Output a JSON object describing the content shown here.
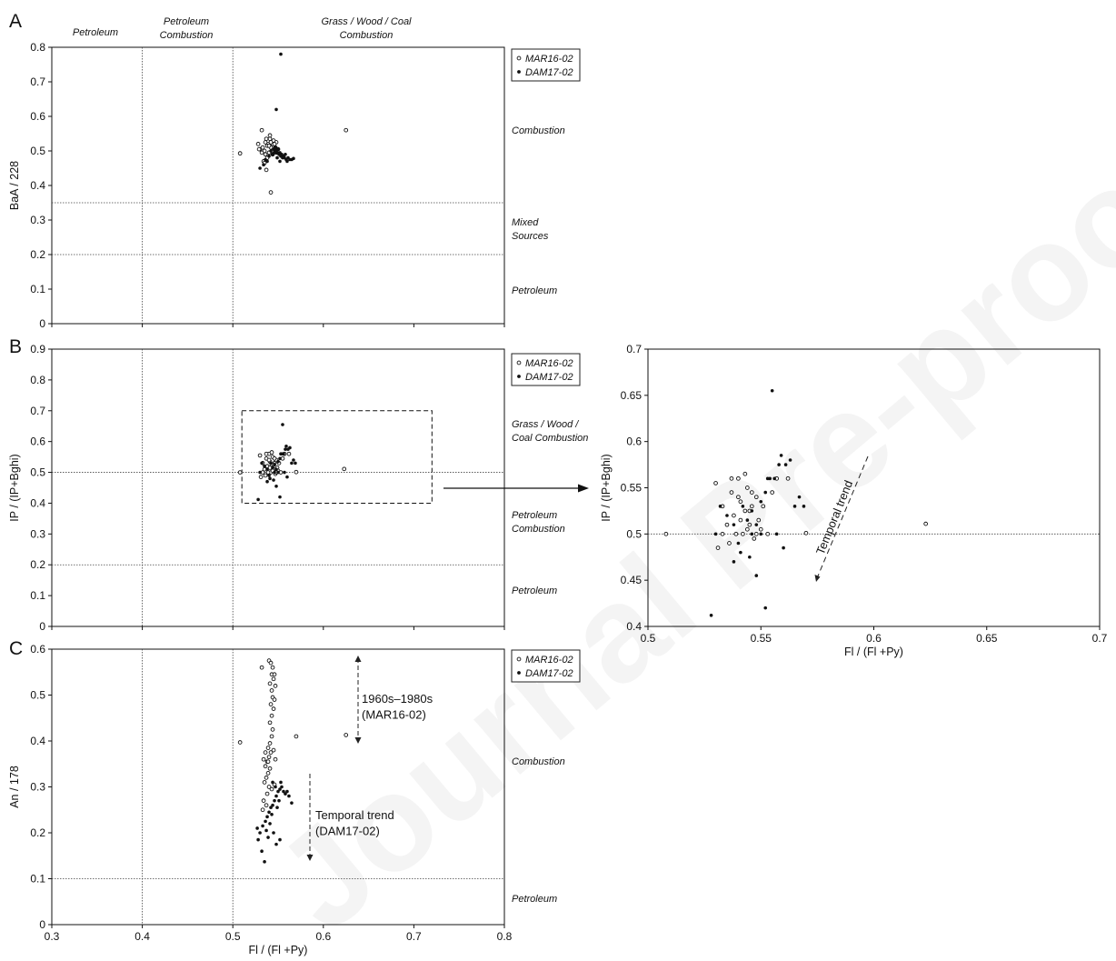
{
  "figure": {
    "watermark": "Journal Pre-proof",
    "legend": [
      {
        "label": "MAR16-02",
        "marker": "open-circle"
      },
      {
        "label": "DAM17-02",
        "marker": "filled-dot"
      }
    ],
    "region_labels_top": [
      "Petroleum",
      "Petroleum\nCombustion",
      "Grass / Wood / Coal\nCombustion"
    ],
    "panels": {
      "A": {
        "letter": "A",
        "ylabel": "BaA / 228",
        "region_labels_right": [
          "Combustion",
          "Mixed\nSources",
          "Petroleum"
        ]
      },
      "B": {
        "letter": "B",
        "ylabel": "IP / (IP+Bghi)",
        "region_labels_right": [
          "Grass / Wood /\nCoal Combustion",
          "Petroleum\nCombustion",
          "Petroleum"
        ]
      },
      "C": {
        "letter": "C",
        "ylabel": "An / 178",
        "xlabel": "Fl / (Fl +Py)",
        "region_labels_right": [
          "Combustion",
          "Petroleum"
        ],
        "annotations": [
          "1960s–1980s\n(MAR16-02)",
          "Temporal trend\n(DAM17-02)"
        ]
      },
      "zoom": {
        "ylabel": "IP / (IP+Bghi)",
        "xlabel": "Fl / (Fl +Py)",
        "annotation": "Temporal trend"
      }
    }
  },
  "chart_data": [
    {
      "type": "scatter",
      "panel": "A",
      "xlim": [
        0.3,
        0.8
      ],
      "ylim": [
        0,
        0.8
      ],
      "xticks": [
        "0.3",
        "0.4",
        "0.5",
        "0.6",
        "0.7",
        "0.8"
      ],
      "yticks": [
        "0",
        "0.1",
        "0.2",
        "0.3",
        "0.4",
        "0.5",
        "0.6",
        "0.7",
        "0.8"
      ],
      "reference_lines": {
        "x": [
          0.4,
          0.5
        ],
        "y": [
          0.2,
          0.35
        ]
      },
      "series": [
        {
          "name": "MAR16-02",
          "marker": "open-circle",
          "points": [
            [
              0.508,
              0.493
            ],
            [
              0.532,
              0.56
            ],
            [
              0.625,
              0.56
            ],
            [
              0.542,
              0.38
            ],
            [
              0.537,
              0.445
            ],
            [
              0.528,
              0.52
            ],
            [
              0.53,
              0.505
            ],
            [
              0.533,
              0.51
            ],
            [
              0.535,
              0.5
            ],
            [
              0.536,
              0.525
            ],
            [
              0.538,
              0.515
            ],
            [
              0.539,
              0.53
            ],
            [
              0.54,
              0.495
            ],
            [
              0.541,
              0.535
            ],
            [
              0.542,
              0.51
            ],
            [
              0.543,
              0.5
            ],
            [
              0.544,
              0.52
            ],
            [
              0.545,
              0.53
            ],
            [
              0.546,
              0.505
            ],
            [
              0.547,
              0.51
            ],
            [
              0.548,
              0.525
            ],
            [
              0.536,
              0.49
            ],
            [
              0.538,
              0.48
            ],
            [
              0.534,
              0.47
            ],
            [
              0.54,
              0.515
            ],
            [
              0.544,
              0.49
            ],
            [
              0.542,
              0.525
            ],
            [
              0.532,
              0.495
            ],
            [
              0.529,
              0.505
            ],
            [
              0.537,
              0.535
            ],
            [
              0.546,
              0.52
            ],
            [
              0.548,
              0.495
            ],
            [
              0.55,
              0.505
            ],
            [
              0.535,
              0.465
            ],
            [
              0.541,
              0.545
            ]
          ]
        },
        {
          "name": "DAM17-02",
          "marker": "filled-dot",
          "points": [
            [
              0.553,
              0.78
            ],
            [
              0.548,
              0.62
            ],
            [
              0.53,
              0.45
            ],
            [
              0.536,
              0.475
            ],
            [
              0.54,
              0.485
            ],
            [
              0.544,
              0.49
            ],
            [
              0.547,
              0.5
            ],
            [
              0.549,
              0.495
            ],
            [
              0.551,
              0.49
            ],
            [
              0.553,
              0.485
            ],
            [
              0.555,
              0.48
            ],
            [
              0.557,
              0.48
            ],
            [
              0.559,
              0.475
            ],
            [
              0.561,
              0.48
            ],
            [
              0.563,
              0.475
            ],
            [
              0.565,
              0.475
            ],
            [
              0.545,
              0.505
            ],
            [
              0.547,
              0.51
            ],
            [
              0.55,
              0.505
            ],
            [
              0.552,
              0.495
            ],
            [
              0.554,
              0.49
            ],
            [
              0.556,
              0.485
            ],
            [
              0.558,
              0.49
            ],
            [
              0.542,
              0.5
            ],
            [
              0.546,
              0.495
            ],
            [
              0.538,
              0.47
            ],
            [
              0.534,
              0.46
            ],
            [
              0.549,
              0.48
            ],
            [
              0.552,
              0.47
            ],
            [
              0.56,
              0.47
            ],
            [
              0.567,
              0.478
            ]
          ]
        }
      ]
    },
    {
      "type": "scatter",
      "panel": "B",
      "xlim": [
        0.3,
        0.8
      ],
      "ylim": [
        0,
        0.9
      ],
      "xticks": [
        "0.3",
        "0.4",
        "0.5",
        "0.6",
        "0.7",
        "0.8"
      ],
      "yticks": [
        "0",
        "0.1",
        "0.2",
        "0.3",
        "0.4",
        "0.5",
        "0.6",
        "0.7",
        "0.8",
        "0.9"
      ],
      "reference_lines": {
        "x": [
          0.4,
          0.5
        ],
        "y": [
          0.2,
          0.5
        ]
      },
      "zoom_box": {
        "x": [
          0.51,
          0.72
        ],
        "y": [
          0.4,
          0.7
        ]
      },
      "series": [
        {
          "name": "MAR16-02",
          "marker": "open-circle",
          "points": [
            [
              0.508,
              0.5
            ],
            [
              0.623,
              0.511
            ],
            [
              0.53,
              0.555
            ],
            [
              0.533,
              0.53
            ],
            [
              0.535,
              0.51
            ],
            [
              0.537,
              0.545
            ],
            [
              0.538,
              0.52
            ],
            [
              0.54,
              0.56
            ],
            [
              0.541,
              0.535
            ],
            [
              0.542,
              0.5
            ],
            [
              0.543,
              0.525
            ],
            [
              0.544,
              0.55
            ],
            [
              0.545,
              0.51
            ],
            [
              0.546,
              0.53
            ],
            [
              0.547,
              0.495
            ],
            [
              0.548,
              0.54
            ],
            [
              0.549,
              0.515
            ],
            [
              0.55,
              0.505
            ],
            [
              0.536,
              0.49
            ],
            [
              0.539,
              0.5
            ],
            [
              0.541,
              0.515
            ],
            [
              0.544,
              0.505
            ],
            [
              0.546,
              0.545
            ],
            [
              0.533,
              0.5
            ],
            [
              0.531,
              0.485
            ],
            [
              0.537,
              0.56
            ],
            [
              0.54,
              0.54
            ],
            [
              0.543,
              0.565
            ],
            [
              0.545,
              0.525
            ],
            [
              0.548,
              0.5
            ],
            [
              0.551,
              0.53
            ],
            [
              0.553,
              0.5
            ],
            [
              0.555,
              0.545
            ],
            [
              0.557,
              0.56
            ],
            [
              0.562,
              0.56
            ],
            [
              0.57,
              0.501
            ]
          ]
        },
        {
          "name": "DAM17-02",
          "marker": "filled-dot",
          "points": [
            [
              0.555,
              0.655
            ],
            [
              0.528,
              0.412
            ],
            [
              0.552,
              0.42
            ],
            [
              0.53,
              0.5
            ],
            [
              0.532,
              0.53
            ],
            [
              0.535,
              0.52
            ],
            [
              0.538,
              0.51
            ],
            [
              0.54,
              0.49
            ],
            [
              0.542,
              0.53
            ],
            [
              0.544,
              0.515
            ],
            [
              0.546,
              0.5
            ],
            [
              0.548,
              0.51
            ],
            [
              0.55,
              0.535
            ],
            [
              0.552,
              0.545
            ],
            [
              0.554,
              0.56
            ],
            [
              0.556,
              0.56
            ],
            [
              0.558,
              0.575
            ],
            [
              0.559,
              0.585
            ],
            [
              0.561,
              0.575
            ],
            [
              0.563,
              0.58
            ],
            [
              0.565,
              0.53
            ],
            [
              0.567,
              0.54
            ],
            [
              0.569,
              0.53
            ],
            [
              0.56,
              0.485
            ],
            [
              0.557,
              0.5
            ],
            [
              0.545,
              0.475
            ],
            [
              0.548,
              0.455
            ],
            [
              0.538,
              0.47
            ],
            [
              0.541,
              0.48
            ],
            [
              0.553,
              0.56
            ],
            [
              0.546,
              0.525
            ],
            [
              0.55,
              0.5
            ]
          ]
        }
      ]
    },
    {
      "type": "scatter",
      "panel": "zoom",
      "xlim": [
        0.5,
        0.7
      ],
      "ylim": [
        0.4,
        0.7
      ],
      "xticks": [
        "0.5",
        "0.55",
        "0.6",
        "0.65",
        "0.7"
      ],
      "yticks": [
        "0.4",
        "0.45",
        "0.5",
        "0.55",
        "0.6",
        "0.65",
        "0.7"
      ],
      "reference_lines": {
        "y": [
          0.5
        ]
      },
      "series_ref": "same points as panel B"
    },
    {
      "type": "scatter",
      "panel": "C",
      "xlim": [
        0.3,
        0.8
      ],
      "ylim": [
        0,
        0.6
      ],
      "xticks": [
        "0.3",
        "0.4",
        "0.5",
        "0.6",
        "0.7",
        "0.8"
      ],
      "yticks": [
        "0",
        "0.1",
        "0.2",
        "0.3",
        "0.4",
        "0.5",
        "0.6"
      ],
      "reference_lines": {
        "x": [
          0.4,
          0.5
        ],
        "y": [
          0.1
        ]
      },
      "series": [
        {
          "name": "MAR16-02",
          "marker": "open-circle",
          "points": [
            [
              0.508,
              0.397
            ],
            [
              0.625,
              0.413
            ],
            [
              0.57,
              0.41
            ],
            [
              0.532,
              0.56
            ],
            [
              0.54,
              0.575
            ],
            [
              0.542,
              0.57
            ],
            [
              0.544,
              0.56
            ],
            [
              0.543,
              0.545
            ],
            [
              0.545,
              0.535
            ],
            [
              0.541,
              0.525
            ],
            [
              0.543,
              0.51
            ],
            [
              0.544,
              0.495
            ],
            [
              0.542,
              0.48
            ],
            [
              0.545,
              0.47
            ],
            [
              0.543,
              0.455
            ],
            [
              0.541,
              0.44
            ],
            [
              0.544,
              0.425
            ],
            [
              0.543,
              0.41
            ],
            [
              0.541,
              0.395
            ],
            [
              0.539,
              0.385
            ],
            [
              0.542,
              0.375
            ],
            [
              0.54,
              0.365
            ],
            [
              0.538,
              0.355
            ],
            [
              0.536,
              0.345
            ],
            [
              0.541,
              0.34
            ],
            [
              0.539,
              0.33
            ],
            [
              0.537,
              0.32
            ],
            [
              0.535,
              0.31
            ],
            [
              0.54,
              0.3
            ],
            [
              0.543,
              0.295
            ],
            [
              0.546,
              0.305
            ],
            [
              0.538,
              0.285
            ],
            [
              0.534,
              0.27
            ],
            [
              0.537,
              0.26
            ],
            [
              0.533,
              0.25
            ],
            [
              0.545,
              0.38
            ],
            [
              0.547,
              0.36
            ],
            [
              0.534,
              0.36
            ],
            [
              0.536,
              0.375
            ],
            [
              0.539,
              0.355
            ],
            [
              0.546,
              0.545
            ],
            [
              0.547,
              0.52
            ],
            [
              0.546,
              0.49
            ]
          ]
        },
        {
          "name": "DAM17-02",
          "marker": "filled-dot",
          "points": [
            [
              0.535,
              0.137
            ],
            [
              0.532,
              0.16
            ],
            [
              0.528,
              0.185
            ],
            [
              0.53,
              0.2
            ],
            [
              0.527,
              0.21
            ],
            [
              0.533,
              0.215
            ],
            [
              0.536,
              0.225
            ],
            [
              0.538,
              0.235
            ],
            [
              0.54,
              0.245
            ],
            [
              0.542,
              0.255
            ],
            [
              0.544,
              0.26
            ],
            [
              0.546,
              0.27
            ],
            [
              0.548,
              0.28
            ],
            [
              0.55,
              0.29
            ],
            [
              0.552,
              0.295
            ],
            [
              0.554,
              0.3
            ],
            [
              0.556,
              0.29
            ],
            [
              0.558,
              0.285
            ],
            [
              0.56,
              0.29
            ],
            [
              0.562,
              0.28
            ],
            [
              0.565,
              0.265
            ],
            [
              0.548,
              0.175
            ],
            [
              0.552,
              0.185
            ],
            [
              0.545,
              0.2
            ],
            [
              0.541,
              0.22
            ],
            [
              0.539,
              0.19
            ],
            [
              0.537,
              0.205
            ],
            [
              0.543,
              0.24
            ],
            [
              0.549,
              0.255
            ],
            [
              0.551,
              0.27
            ],
            [
              0.547,
              0.3
            ],
            [
              0.553,
              0.31
            ],
            [
              0.544,
              0.31
            ]
          ]
        }
      ]
    }
  ]
}
